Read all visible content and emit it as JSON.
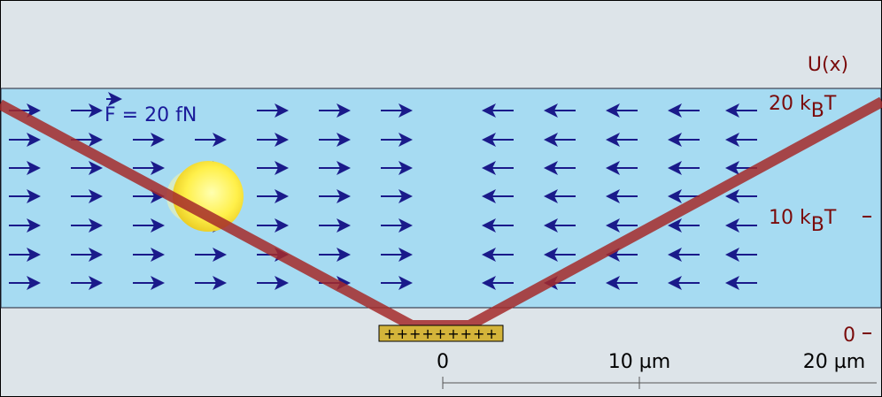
{
  "potential_label": "U(x)",
  "energy_ticks": [
    {
      "value": "20 k",
      "subscript": "B",
      "unit": "T"
    },
    {
      "value": "10 k",
      "subscript": "B",
      "unit": "T"
    },
    {
      "value": "0"
    }
  ],
  "force_label": {
    "symbol": "F",
    "text": "= 20 fN"
  },
  "electrode_charge": "+++++++++",
  "position_ticks": [
    "0",
    "10 µm",
    "20 µm"
  ]
}
